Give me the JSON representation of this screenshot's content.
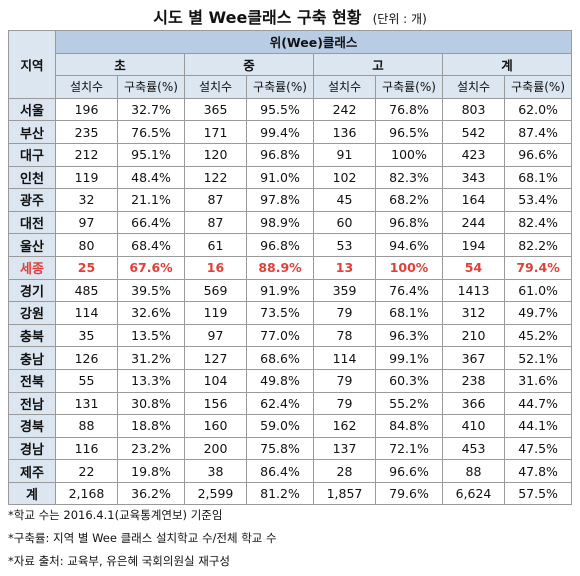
{
  "title": "시도 별 Wee클래스 구축 현황",
  "unit": "(단위 : 개)",
  "table": {
    "region_header": "지역",
    "group_header": "위(Wee)클래스",
    "levels": [
      "초",
      "중",
      "고",
      "계"
    ],
    "sub_headers": [
      "설치수",
      "구축률(%)"
    ],
    "rows": [
      {
        "region": "서울",
        "cells": [
          "196",
          "32.7%",
          "365",
          "95.5%",
          "242",
          "76.8%",
          "803",
          "62.0%"
        ]
      },
      {
        "region": "부산",
        "cells": [
          "235",
          "76.5%",
          "171",
          "99.4%",
          "136",
          "96.5%",
          "542",
          "87.4%"
        ]
      },
      {
        "region": "대구",
        "cells": [
          "212",
          "95.1%",
          "120",
          "96.8%",
          "91",
          "100%",
          "423",
          "96.6%"
        ]
      },
      {
        "region": "인천",
        "cells": [
          "119",
          "48.4%",
          "122",
          "91.0%",
          "102",
          "82.3%",
          "343",
          "68.1%"
        ]
      },
      {
        "region": "광주",
        "cells": [
          "32",
          "21.1%",
          "87",
          "97.8%",
          "45",
          "68.2%",
          "164",
          "53.4%"
        ]
      },
      {
        "region": "대전",
        "cells": [
          "97",
          "66.4%",
          "87",
          "98.9%",
          "60",
          "96.8%",
          "244",
          "82.4%"
        ]
      },
      {
        "region": "울산",
        "cells": [
          "80",
          "68.4%",
          "61",
          "96.8%",
          "53",
          "94.6%",
          "194",
          "82.2%"
        ]
      },
      {
        "region": "세종",
        "highlight": true,
        "cells": [
          "25",
          "67.6%",
          "16",
          "88.9%",
          "13",
          "100%",
          "54",
          "79.4%"
        ]
      },
      {
        "region": "경기",
        "cells": [
          "485",
          "39.5%",
          "569",
          "91.9%",
          "359",
          "76.4%",
          "1413",
          "61.0%"
        ]
      },
      {
        "region": "강원",
        "cells": [
          "114",
          "32.6%",
          "119",
          "73.5%",
          "79",
          "68.1%",
          "312",
          "49.7%"
        ]
      },
      {
        "region": "충북",
        "cells": [
          "35",
          "13.5%",
          "97",
          "77.0%",
          "78",
          "96.3%",
          "210",
          "45.2%"
        ]
      },
      {
        "region": "충남",
        "cells": [
          "126",
          "31.2%",
          "127",
          "68.6%",
          "114",
          "99.1%",
          "367",
          "52.1%"
        ]
      },
      {
        "region": "전북",
        "cells": [
          "55",
          "13.3%",
          "104",
          "49.8%",
          "79",
          "60.3%",
          "238",
          "31.6%"
        ]
      },
      {
        "region": "전남",
        "cells": [
          "131",
          "30.8%",
          "156",
          "62.4%",
          "79",
          "55.2%",
          "366",
          "44.7%"
        ]
      },
      {
        "region": "경북",
        "cells": [
          "88",
          "18.8%",
          "160",
          "59.0%",
          "162",
          "84.8%",
          "410",
          "44.1%"
        ]
      },
      {
        "region": "경남",
        "cells": [
          "116",
          "23.2%",
          "200",
          "75.8%",
          "137",
          "72.1%",
          "453",
          "47.5%"
        ]
      },
      {
        "region": "제주",
        "cells": [
          "22",
          "19.8%",
          "38",
          "86.4%",
          "28",
          "96.6%",
          "88",
          "47.8%"
        ]
      },
      {
        "region": "계",
        "cells": [
          "2,168",
          "36.2%",
          "2,599",
          "81.2%",
          "1,857",
          "79.6%",
          "6,624",
          "57.5%"
        ]
      }
    ]
  },
  "notes": [
    "*학교 수는 2016.4.1(교육통계연보) 기준임",
    "*구축률: 지역 별 Wee 클래스 설치학교 수/전체 학교 수",
    "*자료 출처: 교육부, 유은혜 국회의원실 재구성"
  ],
  "colors": {
    "header_fill": "#dce6f1",
    "group_header_fill": "#b8cce4",
    "highlight_text": "#e0403a",
    "grid_line": "#9a9a9a"
  }
}
